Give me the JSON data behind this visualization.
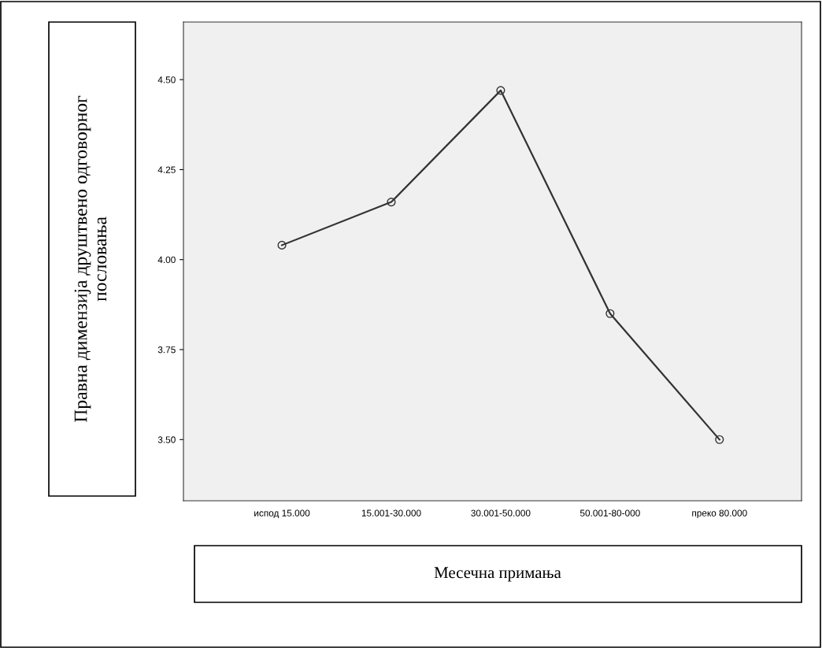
{
  "chart_data": {
    "type": "line",
    "xlabel": "Месечна примања",
    "ylabel": "Правна димензија друштвено одговорног\nпословања",
    "categories": [
      "испод 15.000",
      "15.001-30.000",
      "30.001-50.000",
      "50.001-80-000",
      "преко 80.000"
    ],
    "series": [
      {
        "color": "#333333",
        "values": [
          4.04,
          4.16,
          4.47,
          3.85,
          3.5
        ]
      }
    ],
    "ylim": [
      3.33,
      4.66
    ],
    "yticks": [
      {
        "value": 3.5,
        "label": "3.50"
      },
      {
        "value": 3.75,
        "label": "3.75"
      },
      {
        "value": 4.0,
        "label": "4.00"
      },
      {
        "value": 4.25,
        "label": "4.25"
      },
      {
        "value": 4.5,
        "label": "4.50"
      }
    ],
    "grid": false,
    "legend": false,
    "marker": "circle",
    "line_style": "solid"
  }
}
